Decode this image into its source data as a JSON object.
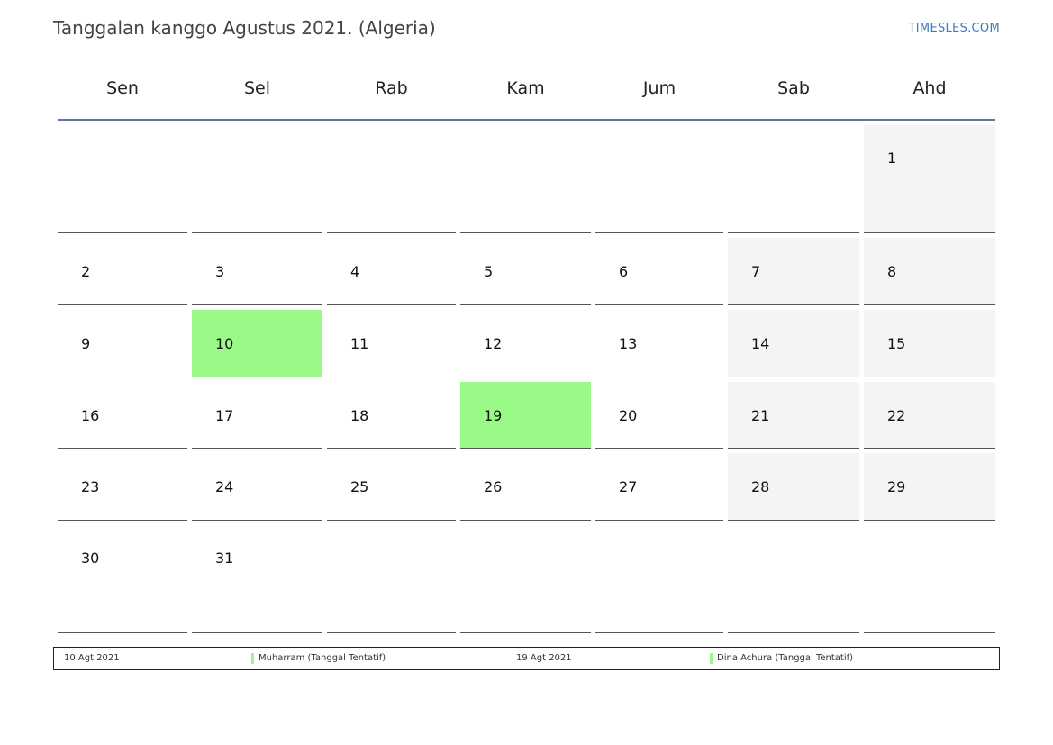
{
  "header": {
    "title": "Tanggalan kanggo Agustus 2021. (Algeria)",
    "brand": "TIMESLES.COM"
  },
  "weekdays": [
    "Sen",
    "Sel",
    "Rab",
    "Kam",
    "Jum",
    "Sab",
    "Ahd"
  ],
  "weeks": [
    [
      "",
      "",
      "",
      "",
      "",
      "",
      "1"
    ],
    [
      "2",
      "3",
      "4",
      "5",
      "6",
      "7",
      "8"
    ],
    [
      "9",
      "10",
      "11",
      "12",
      "13",
      "14",
      "15"
    ],
    [
      "16",
      "17",
      "18",
      "19",
      "20",
      "21",
      "22"
    ],
    [
      "23",
      "24",
      "25",
      "26",
      "27",
      "28",
      "29"
    ],
    [
      "30",
      "31",
      "",
      "",
      "",
      "",
      ""
    ]
  ],
  "holiday_days": [
    "10",
    "19"
  ],
  "colors": {
    "holiday": "#99fa87",
    "weekend": "#f4f4f4",
    "header_rule": "#5b7aa3",
    "brand": "#3a7bbf"
  },
  "legend": [
    {
      "date": "10 Agt 2021",
      "name": "Muharram (Tanggal Tentatif)"
    },
    {
      "date": "19 Agt 2021",
      "name": "Dina Achura (Tanggal Tentatif)"
    }
  ]
}
